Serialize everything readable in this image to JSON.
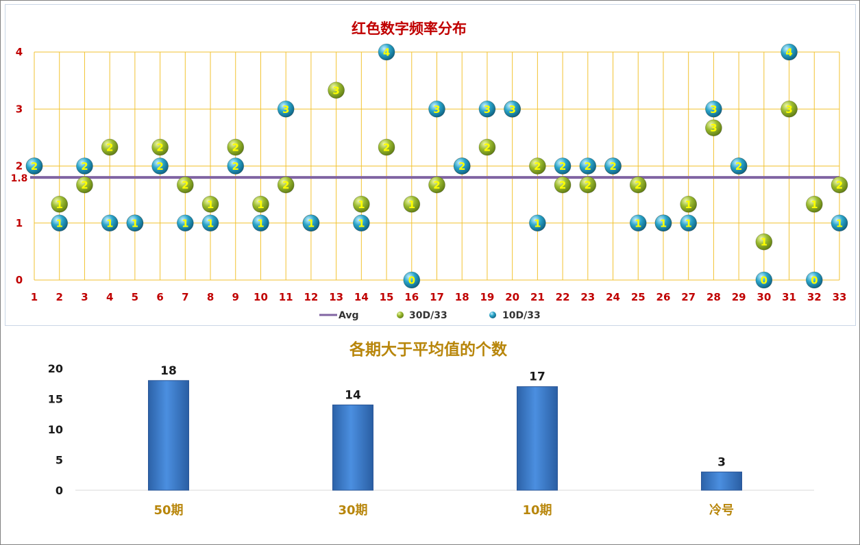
{
  "chart_data": [
    {
      "type": "scatter",
      "title": "红色数字频率分布",
      "x": [
        1,
        2,
        3,
        4,
        5,
        6,
        7,
        8,
        9,
        10,
        11,
        12,
        13,
        14,
        15,
        16,
        17,
        18,
        19,
        20,
        21,
        22,
        23,
        24,
        25,
        26,
        27,
        28,
        29,
        30,
        31,
        32,
        33
      ],
      "ylim": [
        0,
        4
      ],
      "yticks": [
        0,
        1,
        2,
        3,
        4
      ],
      "avg": {
        "name": "Avg",
        "value": 1.8,
        "label": "1.8",
        "color": "#8064a2"
      },
      "series": [
        {
          "name": "30D/33",
          "color": "#9bbb2f",
          "values": [
            2,
            1.33,
            1.67,
            2.33,
            1,
            2.33,
            1.67,
            1.33,
            2.33,
            1.33,
            1.67,
            1,
            3.33,
            1.33,
            2.33,
            1.33,
            1.67,
            2,
            2.33,
            3,
            2,
            1.67,
            1.67,
            2,
            1.67,
            1,
            1.33,
            2.67,
            2,
            0.67,
            3,
            1.33,
            1.67
          ],
          "labels": [
            "2",
            "1",
            "2",
            "2",
            "1",
            "2",
            "2",
            "1",
            "2",
            "1",
            "2",
            "1",
            "3",
            "1",
            "2",
            "1",
            "2",
            "2",
            "2",
            "3",
            "2",
            "2",
            "2",
            "2",
            "2",
            "1",
            "1",
            "3",
            "2",
            "1",
            "3",
            "1",
            "2"
          ]
        },
        {
          "name": "10D/33",
          "color": "#2aa5c9",
          "values": [
            2,
            1,
            2,
            1,
            1,
            2,
            1,
            1,
            2,
            1,
            3,
            1,
            null,
            1,
            4,
            0,
            3,
            2,
            3,
            3,
            1,
            2,
            2,
            2,
            1,
            1,
            1,
            3,
            2,
            0,
            4,
            0,
            1
          ],
          "labels": [
            "2",
            "1",
            "2",
            "1",
            "1",
            "2",
            "1",
            "1",
            "2",
            "1",
            "3",
            "1",
            "",
            "1",
            "4",
            "0",
            "3",
            "2",
            "3",
            "3",
            "1",
            "2",
            "2",
            "2",
            "1",
            "1",
            "1",
            "3",
            "2",
            "0",
            "4",
            "0",
            "1"
          ]
        }
      ],
      "grid": true,
      "legend": "bottom"
    },
    {
      "type": "bar",
      "title": "各期大于平均值的个数",
      "categories": [
        "50期",
        "30期",
        "10期",
        "冷号"
      ],
      "values": [
        18,
        14,
        17,
        3
      ],
      "ylim": [
        0,
        20
      ],
      "yticks": [
        0,
        5,
        10,
        15,
        20
      ],
      "color": "#3f7fd0",
      "grid": false
    }
  ]
}
